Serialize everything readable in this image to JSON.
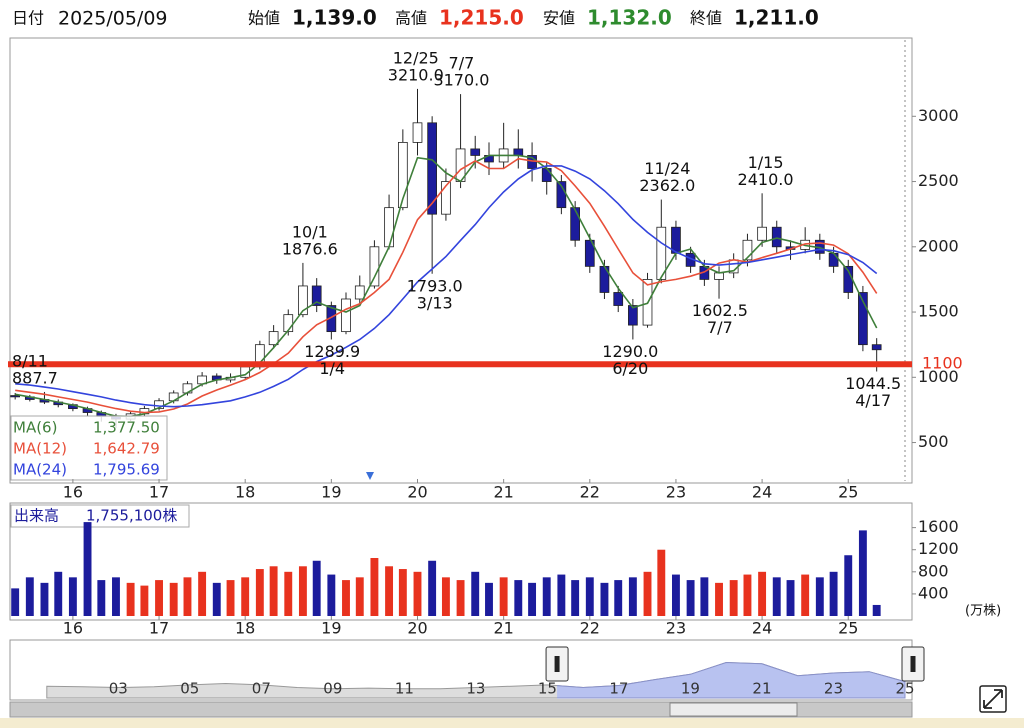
{
  "header": {
    "date_label": "日付",
    "date": "2025/05/09",
    "fields": [
      {
        "label": "始値",
        "value": "1,139.0"
      },
      {
        "label": "高値",
        "value": "1,215.0"
      },
      {
        "label": "安値",
        "value": "1,132.0"
      },
      {
        "label": "終値",
        "value": "1,211.0"
      }
    ]
  },
  "chart_data": [
    {
      "type": "candlestick",
      "x": [
        2015.33,
        2015.5,
        2015.67,
        2015.83,
        2016,
        2016.17,
        2016.33,
        2016.5,
        2016.67,
        2016.83,
        2017,
        2017.17,
        2017.33,
        2017.5,
        2017.67,
        2017.83,
        2018,
        2018.17,
        2018.33,
        2018.5,
        2018.67,
        2018.83,
        2019,
        2019.17,
        2019.33,
        2019.5,
        2019.67,
        2019.83,
        2020,
        2020.17,
        2020.33,
        2020.5,
        2020.67,
        2020.83,
        2021,
        2021.17,
        2021.33,
        2021.5,
        2021.67,
        2021.83,
        2022,
        2022.17,
        2022.33,
        2022.5,
        2022.67,
        2022.83,
        2023,
        2023.17,
        2023.33,
        2023.5,
        2023.67,
        2023.83,
        2024,
        2024.17,
        2024.33,
        2024.5,
        2024.67,
        2024.83,
        2025,
        2025.17,
        2025.33
      ],
      "open": [
        860,
        850,
        830,
        810,
        790,
        760,
        730,
        700,
        680,
        720,
        760,
        820,
        880,
        950,
        1010,
        980,
        1000,
        1080,
        1250,
        1350,
        1480,
        1700,
        1550,
        1350,
        1600,
        1700,
        2000,
        2300,
        2800,
        2950,
        2250,
        2500,
        2750,
        2700,
        2650,
        2750,
        2700,
        2600,
        2500,
        2300,
        2050,
        1850,
        1650,
        1550,
        1400,
        1750,
        2150,
        1950,
        1850,
        1750,
        1800,
        1900,
        2050,
        2150,
        2000,
        1980,
        2050,
        1950,
        1850,
        1650,
        1250
      ],
      "high": [
        880,
        865,
        887.7,
        830,
        800,
        775,
        745,
        720,
        740,
        780,
        840,
        900,
        970,
        1040,
        1030,
        1030,
        1120,
        1280,
        1400,
        1520,
        1876.6,
        1760,
        1580,
        1650,
        1780,
        2050,
        2400,
        2900,
        3210,
        3000,
        2600,
        3170,
        2850,
        2800,
        2950,
        2900,
        2800,
        2650,
        2550,
        2350,
        2100,
        1900,
        1700,
        1600,
        1800,
        2362,
        2200,
        2000,
        1900,
        1850,
        1950,
        2100,
        2410,
        2200,
        2050,
        2150,
        2100,
        2000,
        1900,
        1700,
        1300
      ],
      "low": [
        830,
        815,
        795,
        770,
        740,
        700,
        660,
        612.6,
        665,
        700,
        745,
        800,
        860,
        930,
        950,
        960,
        990,
        1060,
        1220,
        1320,
        1460,
        1500,
        1289.9,
        1330,
        1560,
        1680,
        1980,
        2280,
        2700,
        1793,
        2200,
        2450,
        2600,
        2550,
        2600,
        2600,
        2500,
        2400,
        2250,
        2000,
        1800,
        1600,
        1500,
        1290,
        1380,
        1720,
        1900,
        1800,
        1700,
        1602.5,
        1760,
        1850,
        2000,
        1950,
        1900,
        1950,
        1900,
        1800,
        1600,
        1200,
        1044.5
      ],
      "close": [
        850,
        830,
        810,
        790,
        760,
        730,
        700,
        680,
        720,
        760,
        820,
        880,
        950,
        1010,
        980,
        1000,
        1080,
        1250,
        1350,
        1480,
        1700,
        1550,
        1350,
        1600,
        1700,
        2000,
        2300,
        2800,
        2950,
        2250,
        2500,
        2750,
        2700,
        2650,
        2750,
        2700,
        2600,
        2500,
        2300,
        2050,
        1850,
        1650,
        1550,
        1400,
        1750,
        2150,
        1950,
        1850,
        1750,
        1800,
        1900,
        2050,
        2150,
        2000,
        1980,
        2050,
        1950,
        1850,
        1650,
        1250,
        1211
      ],
      "up_color": "#ffffff",
      "down_color": "#1c1c9c",
      "outline_color": "#222222",
      "series": [
        {
          "name": "MA(6)",
          "color": "#3f7f3a",
          "value_label": "1,377.50",
          "values": [
            870,
            850,
            830,
            810,
            787,
            760,
            730,
            703,
            700,
            720,
            767,
            820,
            883,
            947,
            980,
            997,
            1020,
            1110,
            1227,
            1360,
            1510,
            1577,
            1533,
            1500,
            1550,
            1767,
            2000,
            2367,
            2683,
            2667,
            2567,
            2500,
            2650,
            2700,
            2700,
            2700,
            2683,
            2600,
            2467,
            2283,
            2067,
            1850,
            1683,
            1533,
            1567,
            1767,
            1950,
            1983,
            1850,
            1800,
            1817,
            1917,
            2033,
            2067,
            2043,
            2010,
            1993,
            1950,
            1817,
            1583,
            1377.5
          ]
        },
        {
          "name": "MA(12)",
          "color": "#e8503a",
          "value_label": "1,642.79",
          "values": [
            900,
            885,
            870,
            850,
            830,
            810,
            785,
            760,
            740,
            730,
            735,
            757,
            795,
            857,
            903,
            940,
            982,
            1037,
            1105,
            1185,
            1310,
            1402,
            1460,
            1522,
            1563,
            1650,
            1750,
            1958,
            2208,
            2333,
            2467,
            2592,
            2658,
            2600,
            2600,
            2675,
            2658,
            2650,
            2583,
            2467,
            2333,
            2158,
            1983,
            1800,
            1708,
            1733,
            1750,
            1775,
            1808,
            1875,
            1900,
            1883,
            1917,
            1950,
            1983,
            2022,
            2030,
            2013,
            1947,
            1805,
            1642.79
          ]
        },
        {
          "name": "MA(24)",
          "color": "#3344dd",
          "value_label": "1,795.69",
          "values": [
            950,
            940,
            925,
            910,
            890,
            870,
            850,
            825,
            805,
            790,
            780,
            775,
            780,
            790,
            805,
            820,
            850,
            885,
            930,
            985,
            1060,
            1120,
            1170,
            1230,
            1290,
            1375,
            1480,
            1600,
            1730,
            1830,
            1925,
            2050,
            2170,
            2300,
            2420,
            2520,
            2590,
            2620,
            2620,
            2580,
            2520,
            2430,
            2330,
            2210,
            2110,
            2030,
            1960,
            1910,
            1870,
            1860,
            1870,
            1880,
            1900,
            1920,
            1940,
            1960,
            1980,
            1970,
            1940,
            1880,
            1795.69
          ]
        }
      ],
      "xlim": [
        2015.27,
        2025.74
      ],
      "xticks": [
        {
          "value": 2016,
          "label": "16"
        },
        {
          "value": 2017,
          "label": "17"
        },
        {
          "value": 2018,
          "label": "18"
        },
        {
          "value": 2019,
          "label": "19"
        },
        {
          "value": 2020,
          "label": "20"
        },
        {
          "value": 2021,
          "label": "21"
        },
        {
          "value": 2022,
          "label": "22"
        },
        {
          "value": 2023,
          "label": "23"
        },
        {
          "value": 2024,
          "label": "24"
        },
        {
          "value": 2025,
          "label": "25"
        }
      ],
      "ylim": [
        190,
        3600
      ],
      "yticks": [
        500,
        1000,
        1500,
        2000,
        2500,
        3000
      ],
      "grid": false,
      "hline": {
        "value": 1100,
        "color": "#e8321e"
      },
      "annotations": [
        {
          "x": 2015.61,
          "date": "8/11",
          "value": 887.7,
          "label": "887.7"
        },
        {
          "x": 2018.75,
          "date": "10/1",
          "value": 1876.6,
          "label": "1876.6"
        },
        {
          "x": 2019.01,
          "date": "1/4",
          "value": 1289.9,
          "label": "1289.9"
        },
        {
          "x": 2019.98,
          "date": "12/25",
          "value": 3210,
          "label": "3210.0"
        },
        {
          "x": 2020.2,
          "date": "3/13",
          "value": 1793,
          "label": "1793.0"
        },
        {
          "x": 2020.51,
          "date": "7/7",
          "value": 3170,
          "label": "3170.0"
        },
        {
          "x": 2022.47,
          "date": "6/20",
          "value": 1290,
          "label": "1290.0"
        },
        {
          "x": 2022.9,
          "date": "11/24",
          "value": 2362,
          "label": "2362.0"
        },
        {
          "x": 2023.51,
          "date": "7/7",
          "value": 1602.5,
          "label": "1602.5"
        },
        {
          "x": 2024.04,
          "date": "1/15",
          "value": 2410,
          "label": "2410.0"
        },
        {
          "x": 2025.29,
          "date": "4/17",
          "value": 1044.5,
          "label": "1044.5"
        }
      ]
    },
    {
      "type": "bar",
      "title": "出来高",
      "title_value": "1,755,100株",
      "y_unit": "(万株)",
      "x": [
        2015.33,
        2015.5,
        2015.67,
        2015.83,
        2016,
        2016.17,
        2016.33,
        2016.5,
        2016.67,
        2016.83,
        2017,
        2017.17,
        2017.33,
        2017.5,
        2017.67,
        2017.83,
        2018,
        2018.17,
        2018.33,
        2018.5,
        2018.67,
        2018.83,
        2019,
        2019.17,
        2019.33,
        2019.5,
        2019.67,
        2019.83,
        2020,
        2020.17,
        2020.33,
        2020.5,
        2020.67,
        2020.83,
        2021,
        2021.17,
        2021.33,
        2021.5,
        2021.67,
        2021.83,
        2022,
        2022.17,
        2022.33,
        2022.5,
        2022.67,
        2022.83,
        2023,
        2023.17,
        2023.33,
        2023.5,
        2023.67,
        2023.83,
        2024,
        2024.17,
        2024.33,
        2024.5,
        2024.67,
        2024.83,
        2025,
        2025.17,
        2025.33
      ],
      "values": [
        500,
        700,
        600,
        800,
        700,
        1700,
        650,
        700,
        600,
        550,
        650,
        600,
        700,
        800,
        600,
        650,
        700,
        850,
        900,
        800,
        900,
        1000,
        750,
        650,
        700,
        1050,
        900,
        850,
        800,
        1000,
        700,
        650,
        800,
        600,
        700,
        650,
        600,
        700,
        750,
        650,
        700,
        600,
        650,
        700,
        800,
        1200,
        750,
        650,
        700,
        600,
        650,
        750,
        800,
        700,
        650,
        750,
        700,
        800,
        1100,
        1550,
        200
      ],
      "up_color": "#e8321e",
      "down_color": "#1c1c9c",
      "xlim": [
        2015.27,
        2025.74
      ],
      "xticks": [
        {
          "value": 2016,
          "label": "16"
        },
        {
          "value": 2017,
          "label": "17"
        },
        {
          "value": 2018,
          "label": "18"
        },
        {
          "value": 2019,
          "label": "19"
        },
        {
          "value": 2020,
          "label": "20"
        },
        {
          "value": 2021,
          "label": "21"
        },
        {
          "value": 2022,
          "label": "22"
        },
        {
          "value": 2023,
          "label": "23"
        },
        {
          "value": 2024,
          "label": "24"
        },
        {
          "value": 2025,
          "label": "25"
        }
      ],
      "ylim": [
        0,
        2100
      ],
      "yticks": [
        400,
        800,
        1200,
        1600
      ]
    },
    {
      "type": "area",
      "x": [
        2001,
        2002,
        2003,
        2004,
        2005,
        2006,
        2007,
        2008,
        2009,
        2010,
        2011,
        2012,
        2013,
        2014,
        2015,
        2016,
        2017,
        2018,
        2019,
        2020,
        2021,
        2022,
        2023,
        2024,
        2025
      ],
      "values": [
        900,
        850,
        800,
        850,
        1000,
        1100,
        1000,
        800,
        700,
        750,
        700,
        700,
        800,
        900,
        1000,
        800,
        950,
        1400,
        1800,
        2700,
        2600,
        1700,
        1900,
        2000,
        1250
      ],
      "color": "#b8c2f0",
      "base_color": "#dddddd",
      "xlim": [
        2000.95,
        2025.0
      ],
      "ylim": [
        0,
        3500
      ],
      "xticks": [
        {
          "value": 2003,
          "label": "03"
        },
        {
          "value": 2005,
          "label": "05"
        },
        {
          "value": 2007,
          "label": "07"
        },
        {
          "value": 2009,
          "label": "09"
        },
        {
          "value": 2011,
          "label": "11"
        },
        {
          "value": 2013,
          "label": "13"
        },
        {
          "value": 2015,
          "label": "15"
        },
        {
          "value": 2017,
          "label": "17"
        },
        {
          "value": 2019,
          "label": "19"
        },
        {
          "value": 2021,
          "label": "21"
        },
        {
          "value": 2023,
          "label": "23"
        },
        {
          "value": 2025,
          "label": "25"
        }
      ]
    }
  ]
}
